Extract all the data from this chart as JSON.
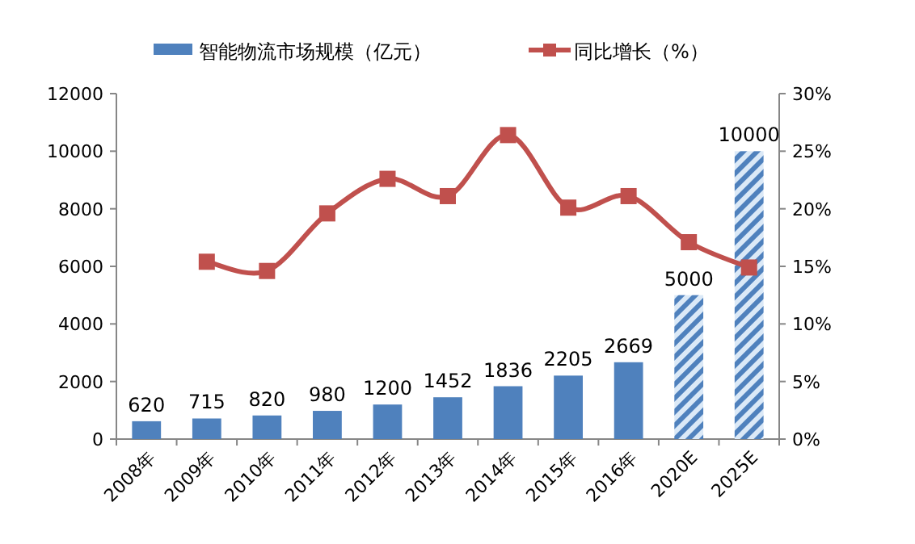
{
  "chart_data": {
    "type": "bar",
    "categories": [
      "2008年",
      "2009年",
      "2010年",
      "2011年",
      "2012年",
      "2013年",
      "2014年",
      "2015年",
      "2016年",
      "2020E",
      "2025E"
    ],
    "series": [
      {
        "name": "智能物流市场规模（亿元）",
        "color": "#4f81bd",
        "colors": [
          "#4f81bd",
          "#4f81bd",
          "#4f81bd",
          "#4f81bd",
          "#4f81bd",
          "#4f81bd",
          "#4f81bd",
          "#4f81bd",
          "#4f81bd",
          "#dbe9f7",
          "#dbe9f7"
        ],
        "values": [
          620,
          715,
          820,
          980,
          1200,
          1452,
          1836,
          2205,
          2669,
          5000,
          10000
        ],
        "value_labels": [
          "620",
          "715",
          "820",
          "980",
          "1200",
          "1452",
          "1836",
          "2205",
          "2669",
          "5000",
          "10000"
        ]
      },
      {
        "name": "同比增长（%）",
        "type": "line",
        "axis": "y2",
        "color": "#c0504d",
        "marker": "square",
        "line_style": "solid",
        "values": [
          null,
          15.4,
          14.6,
          19.6,
          22.6,
          21.1,
          26.4,
          20.1,
          21.1,
          17.1,
          14.9
        ]
      }
    ],
    "ylim": [
      0,
      12000
    ],
    "yticks": [
      0,
      2000,
      4000,
      6000,
      8000,
      10000,
      12000
    ],
    "y2lim": [
      0,
      30
    ],
    "y2ticks": [
      {
        "value": 0,
        "label": "0%"
      },
      {
        "value": 5,
        "label": "5%"
      },
      {
        "value": 10,
        "label": "10%"
      },
      {
        "value": 15,
        "label": "15%"
      },
      {
        "value": 20,
        "label": "20%"
      },
      {
        "value": 25,
        "label": "25%"
      },
      {
        "value": 30,
        "label": "30%"
      }
    ],
    "legend": "top",
    "grid": false
  }
}
